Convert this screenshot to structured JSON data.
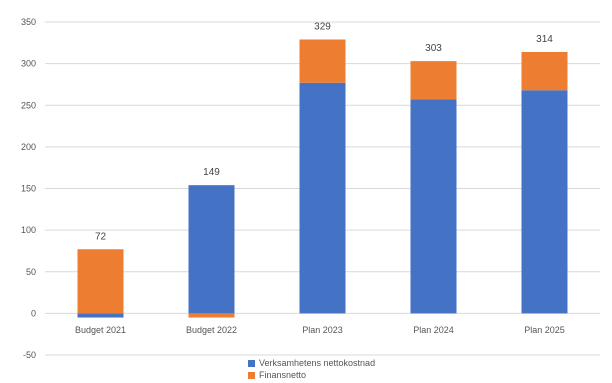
{
  "chart_data": {
    "type": "bar",
    "stacked": true,
    "categories": [
      "Budget 2021",
      "Budget 2022",
      "Plan 2023",
      "Plan 2024",
      "Plan 2025"
    ],
    "series": [
      {
        "name": "Verksamhetens nettokostnad",
        "color": "#4472C4",
        "values": [
          -5,
          154,
          277,
          257,
          268
        ]
      },
      {
        "name": "Finansnetto",
        "color": "#ED7D31",
        "values": [
          77,
          -5,
          52,
          46,
          46
        ]
      }
    ],
    "totals": [
      "72",
      "149",
      "329",
      "303",
      "314"
    ],
    "ylim": [
      -50,
      350
    ],
    "yticks": [
      -50,
      0,
      50,
      100,
      150,
      200,
      250,
      300,
      350
    ],
    "grid": true,
    "legend_position": "bottom"
  }
}
